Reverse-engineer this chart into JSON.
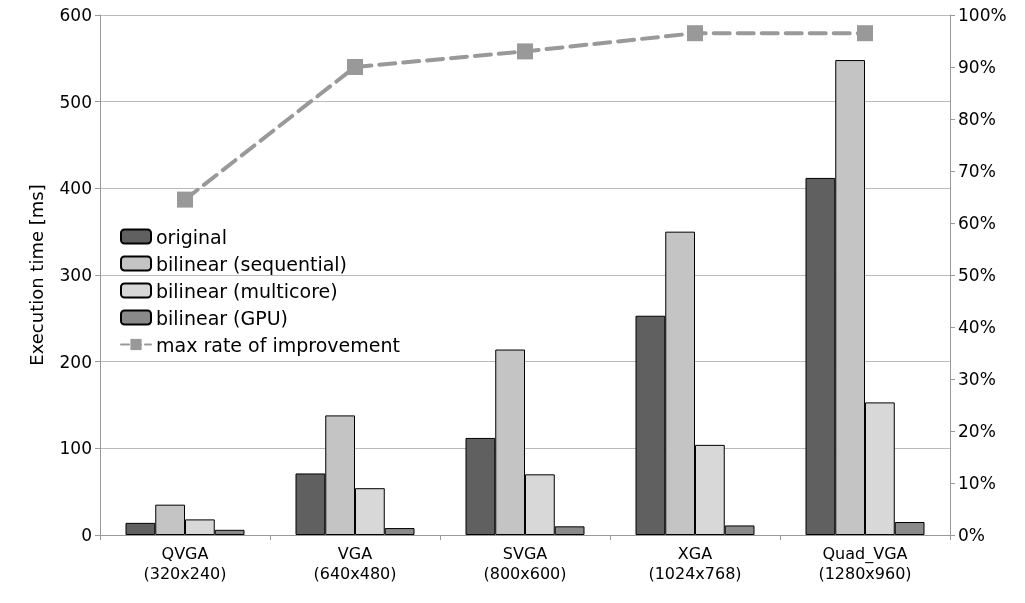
{
  "chart_data": {
    "type": "bar",
    "ylabel": "Execution time [ms]",
    "categories": [
      "QVGA\n(320x240)",
      "VGA\n(640x480)",
      "SVGA\n(800x600)",
      "XGA\n(1024x768)",
      "Quad_VGA\n(1280x960)"
    ],
    "series": [
      {
        "name": "original",
        "color": "#606060",
        "values": [
          14,
          71,
          112,
          253,
          412
        ]
      },
      {
        "name": "bilinear (sequential)",
        "color": "#c4c4c4",
        "values": [
          35,
          138,
          214,
          350,
          548
        ]
      },
      {
        "name": "bilinear (multicore)",
        "color": "#d8d8d8",
        "values": [
          18,
          54,
          70,
          104,
          153
        ]
      },
      {
        "name": "bilinear (GPU)",
        "color": "#8a8a8a",
        "values": [
          6,
          8,
          10,
          11,
          15
        ]
      },
      {
        "name": "max rate of improvement",
        "type": "line",
        "axis": "y2",
        "color": "#999999",
        "values": [
          64.5,
          90,
          93,
          96.5,
          96.5
        ]
      }
    ],
    "ylim": [
      0,
      600
    ],
    "yticks": [
      0,
      100,
      200,
      300,
      400,
      500,
      600
    ],
    "y2lim": [
      0,
      100
    ],
    "y2ticks": [
      {
        "value": 0,
        "label": "0%"
      },
      {
        "value": 10,
        "label": "10%"
      },
      {
        "value": 20,
        "label": "20%"
      },
      {
        "value": 30,
        "label": "30%"
      },
      {
        "value": 40,
        "label": "40%"
      },
      {
        "value": 50,
        "label": "50%"
      },
      {
        "value": 60,
        "label": "60%"
      },
      {
        "value": 70,
        "label": "70%"
      },
      {
        "value": 80,
        "label": "80%"
      },
      {
        "value": 90,
        "label": "90%"
      },
      {
        "value": 100,
        "label": "100%"
      }
    ],
    "grid": "y",
    "legend": "left",
    "marker": "square",
    "line_style": "dashed"
  }
}
